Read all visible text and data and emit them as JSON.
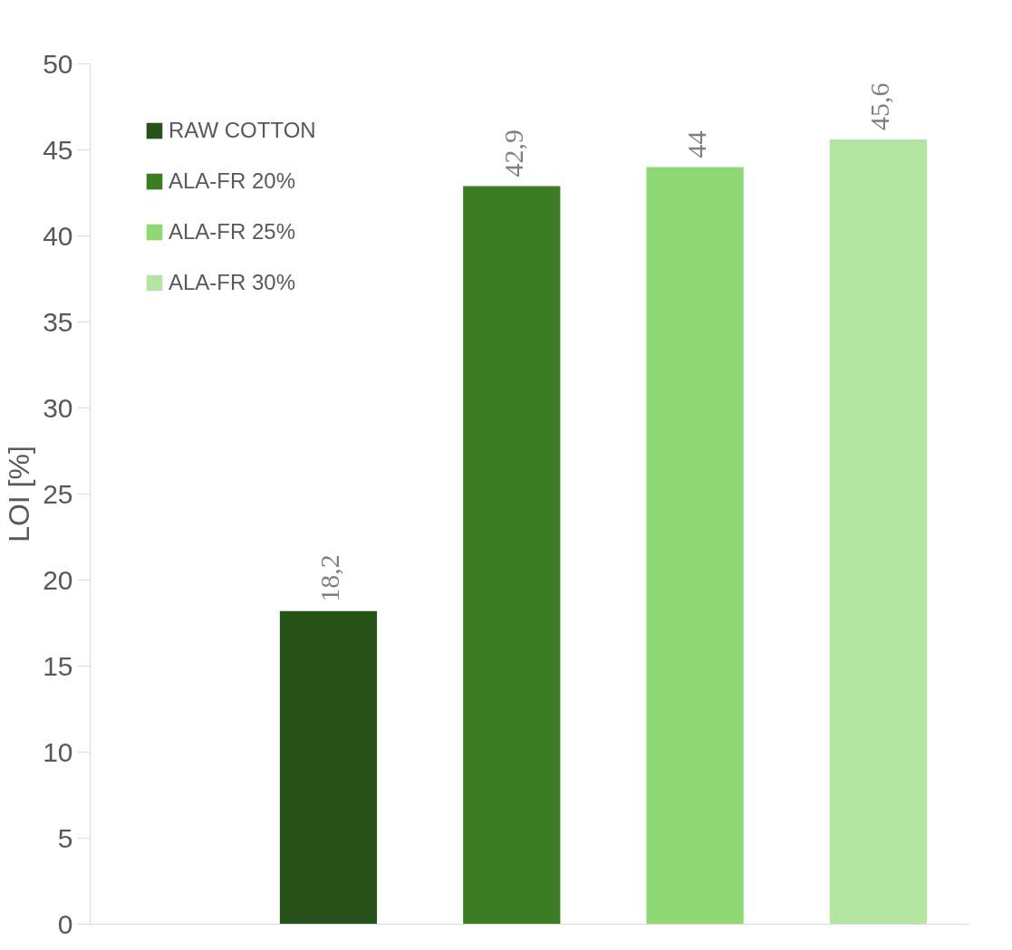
{
  "chart_data": {
    "type": "bar",
    "ylabel": "LOI [%]",
    "categories": [
      null
    ],
    "series": [
      {
        "name": "RAW COTTON",
        "color": "#27521a",
        "values": [
          18.2
        ],
        "value_labels": [
          "18,2"
        ]
      },
      {
        "name": "ALA-FR 20%",
        "color": "#3b7d23",
        "values": [
          42.9
        ],
        "value_labels": [
          "42,9"
        ]
      },
      {
        "name": "ALA-FR 25%",
        "color": "#8ed973",
        "values": [
          44
        ],
        "value_labels": [
          "44"
        ]
      },
      {
        "name": "ALA-FR 30%",
        "color": "#b4e5a2",
        "values": [
          45.6
        ],
        "value_labels": [
          "45,6"
        ]
      }
    ],
    "ylim": [
      0,
      50
    ],
    "yticks": [
      0,
      5,
      10,
      15,
      20,
      25,
      30,
      35,
      40,
      45,
      50
    ],
    "grid": false,
    "legend": "top left",
    "tick_labels": "y"
  }
}
